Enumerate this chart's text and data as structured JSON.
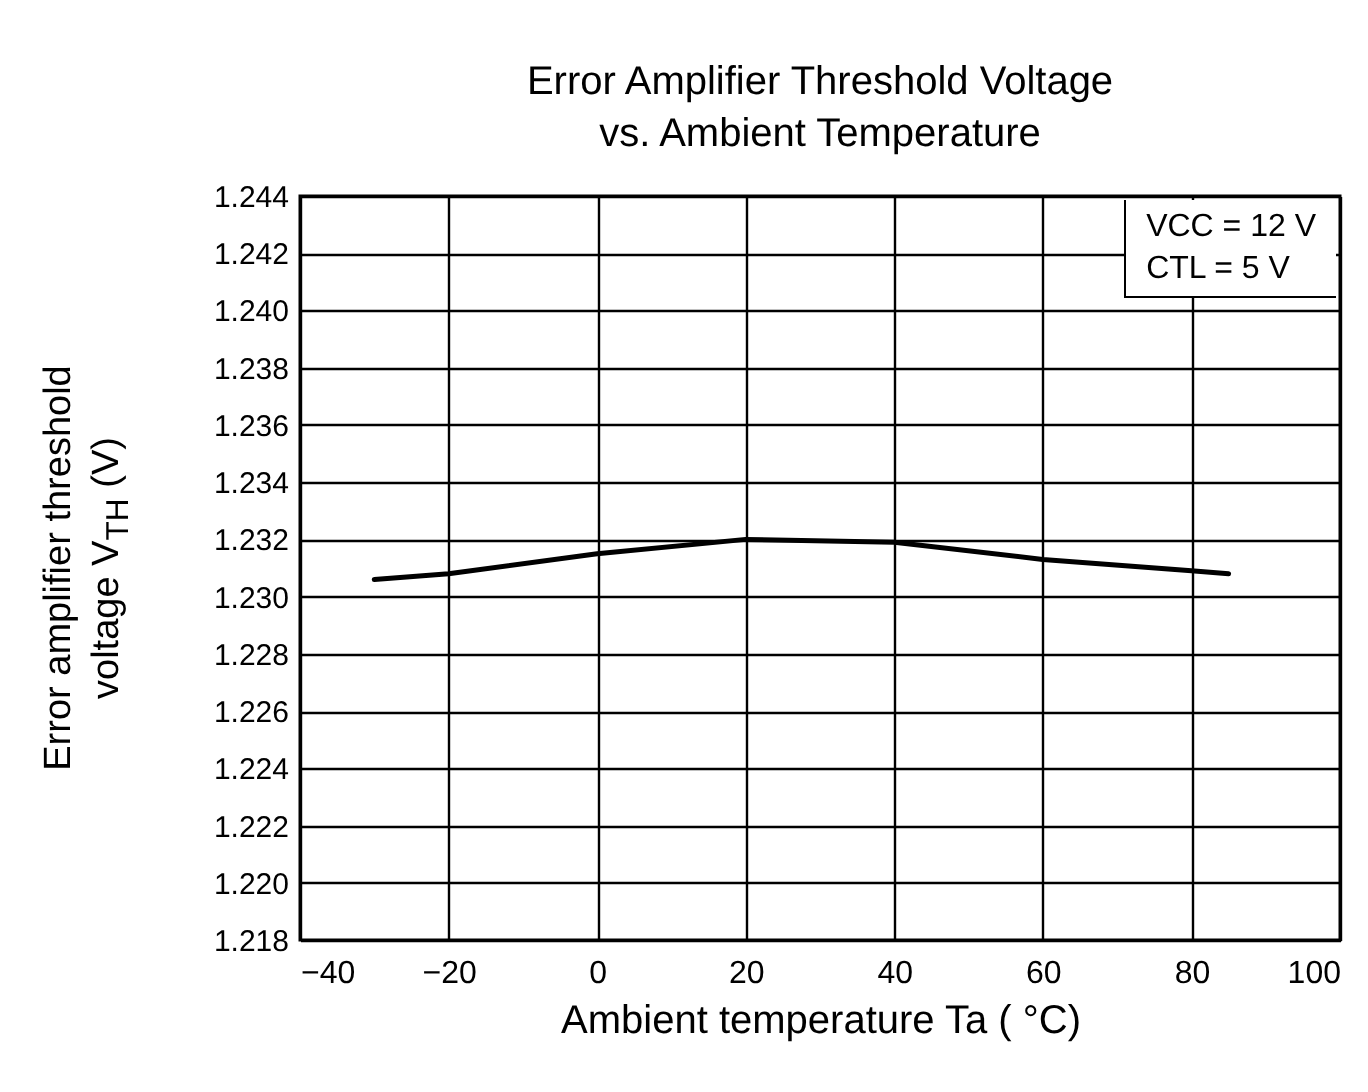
{
  "chart_data": {
    "type": "line",
    "title": "Error Amplifier Threshold Voltage\nvs. Ambient Temperature",
    "xlabel": "Ambient temperature Ta ( °C)",
    "ylabel": "Error amplifier threshold\nvoltage V$_{TH}$ (V)",
    "annotations": [
      "VCC = 12 V",
      "CTL = 5 V"
    ],
    "x": [
      -30,
      -20,
      0,
      20,
      40,
      60,
      80,
      85
    ],
    "series": [
      {
        "color": "#000000",
        "values": [
          1.2306,
          1.2308,
          1.2315,
          1.232,
          1.2319,
          1.2313,
          1.2309,
          1.2308
        ]
      }
    ],
    "xlim": [
      -40,
      100
    ],
    "xticks": [
      -40,
      -20,
      0,
      20,
      40,
      60,
      80,
      100
    ],
    "ylim": [
      1.218,
      1.244
    ],
    "yticks": [
      1.218,
      {
        "value": 1.22,
        "label": "1.220"
      },
      1.222,
      1.224,
      1.226,
      1.228,
      {
        "value": 1.23,
        "label": "1.230"
      },
      1.232,
      1.234,
      1.236,
      1.238,
      {
        "value": 1.24,
        "label": "1.240"
      },
      1.242,
      1.244
    ],
    "grid": true,
    "marker": "none",
    "line_style": "solid"
  }
}
